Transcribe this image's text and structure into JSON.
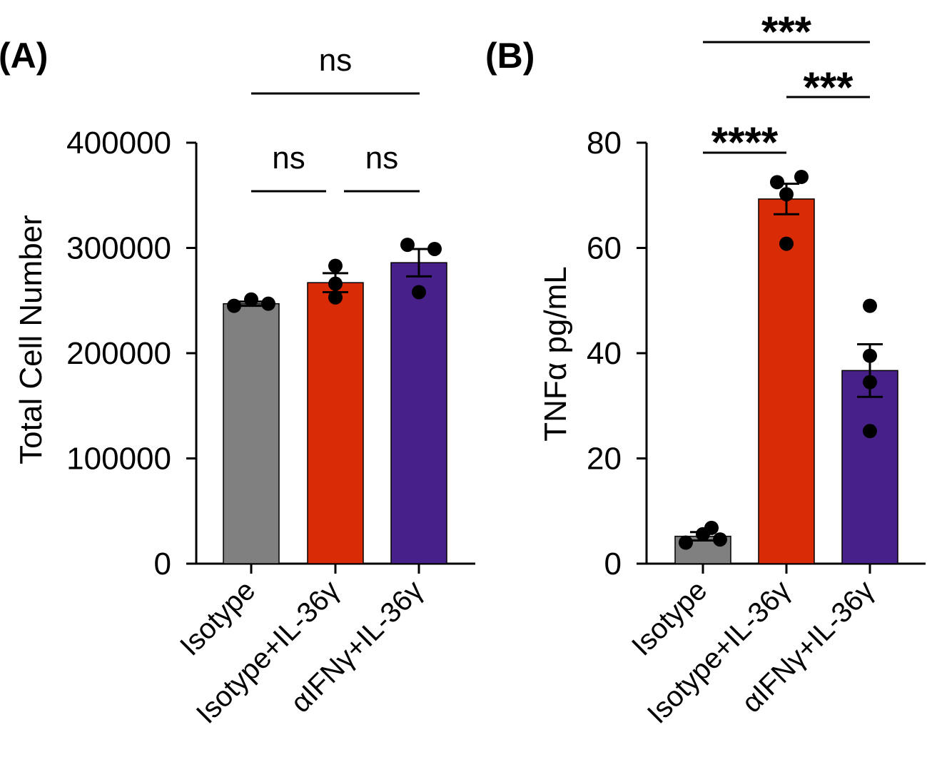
{
  "chart_data": [
    {
      "id": "A",
      "type": "bar",
      "panel_label": "(A)",
      "ylabel": "Total Cell Number",
      "xlabel": "",
      "ylim": [
        0,
        400000
      ],
      "yticks": [
        0,
        100000,
        200000,
        300000,
        400000
      ],
      "ytick_labels": [
        "0",
        "100000",
        "200000",
        "300000",
        "400000"
      ],
      "categories": [
        "Isotype",
        "Isotype+IL-36γ",
        "αIFNγ+IL-36γ"
      ],
      "colors": [
        "#808080",
        "#d92b06",
        "#48208a"
      ],
      "values": [
        247000,
        267000,
        286000
      ],
      "sem": [
        2000,
        9000,
        13000
      ],
      "points": [
        [
          245000,
          251000,
          247000
        ],
        [
          283000,
          266000,
          253000
        ],
        [
          303000,
          299000,
          258000
        ]
      ],
      "significance": [
        {
          "from": 0,
          "to": 1,
          "label": "ns"
        },
        {
          "from": 1,
          "to": 2,
          "label": "ns"
        },
        {
          "from": 0,
          "to": 2,
          "label": "ns"
        }
      ]
    },
    {
      "id": "B",
      "type": "bar",
      "panel_label": "(B)",
      "ylabel": "TNFα pg/mL",
      "xlabel": "",
      "ylim": [
        0,
        80
      ],
      "yticks": [
        0,
        20,
        40,
        60,
        80
      ],
      "ytick_labels": [
        "0",
        "20",
        "40",
        "60",
        "80"
      ],
      "categories": [
        "Isotype",
        "Isotype+IL-36γ",
        "αIFNγ+IL-36γ"
      ],
      "colors": [
        "#808080",
        "#d92b06",
        "#48208a"
      ],
      "values": [
        5.2,
        69.3,
        36.7
      ],
      "sem": [
        0.8,
        2.9,
        5.0
      ],
      "points": [
        [
          4.0,
          5.6,
          4.6,
          6.8
        ],
        [
          72.5,
          70.2,
          73.5,
          60.8
        ],
        [
          49.0,
          39.5,
          34.5,
          25.2
        ]
      ],
      "significance": [
        {
          "from": 0,
          "to": 1,
          "label": "****"
        },
        {
          "from": 1,
          "to": 2,
          "label": "***"
        },
        {
          "from": 0,
          "to": 2,
          "label": "***"
        }
      ]
    }
  ]
}
